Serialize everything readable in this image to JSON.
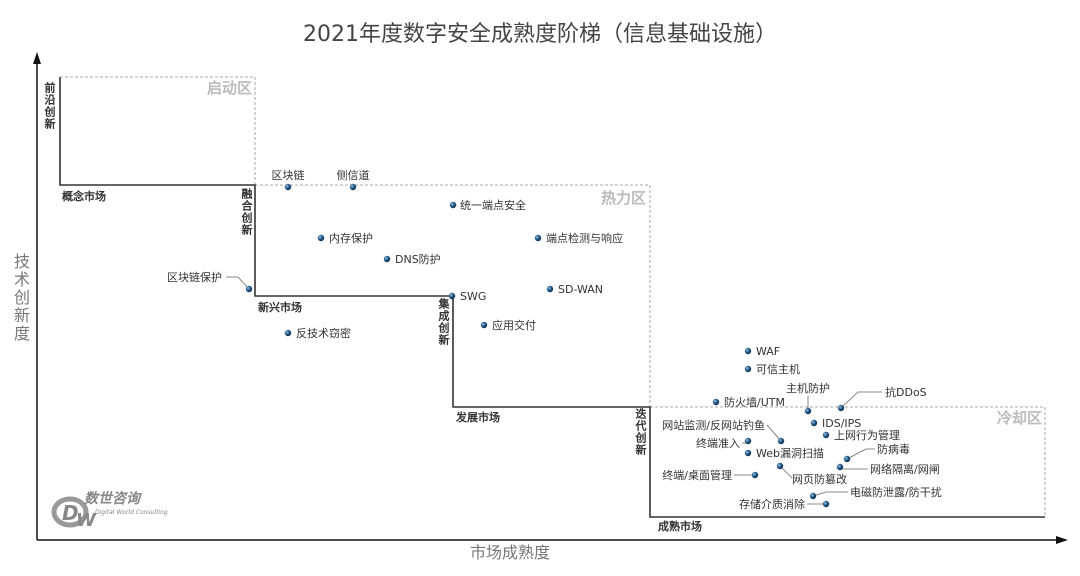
{
  "title": "2021年度数字安全成熟度阶梯（信息基础设施）",
  "y_axis_label": "技术创新度",
  "x_axis_label": "市场成熟度",
  "stages": {
    "frontier_innovation": "前沿创新",
    "concept_market": "概念市场",
    "fusion_innovation": "融合创新",
    "emerging_market": "新兴市场",
    "integration_innovation": "集成创新",
    "developing_market": "发展市场",
    "iteration_innovation": "迭代创新",
    "mature_market": "成熟市场"
  },
  "zones": {
    "startup": "启动区",
    "hot": "热力区",
    "cooling": "冷却区"
  },
  "points": [
    {
      "label": "区块链"
    },
    {
      "label": "侧信道"
    },
    {
      "label": "统一端点安全"
    },
    {
      "label": "内存保护"
    },
    {
      "label": "端点检测与响应"
    },
    {
      "label": "DNS防护"
    },
    {
      "label": "区块链保护"
    },
    {
      "label": "SWG"
    },
    {
      "label": "SD-WAN"
    },
    {
      "label": "应用交付"
    },
    {
      "label": "反技术窃密"
    },
    {
      "label": "WAF"
    },
    {
      "label": "可信主机"
    },
    {
      "label": "防火墙/UTM"
    },
    {
      "label": "主机防护"
    },
    {
      "label": "抗DDoS"
    },
    {
      "label": "IDS/IPS"
    },
    {
      "label": "上网行为管理"
    },
    {
      "label": "网站监测/反网站钓鱼"
    },
    {
      "label": "终端准入"
    },
    {
      "label": "Web漏洞扫描"
    },
    {
      "label": "防病毒"
    },
    {
      "label": "网络隔离/网闸"
    },
    {
      "label": "网页防篡改"
    },
    {
      "label": "终端/桌面管理"
    },
    {
      "label": "电磁防泄露/防干扰"
    },
    {
      "label": "存储介质消除"
    }
  ],
  "logo": {
    "name": "数世咨询",
    "subtitle": "Digital World Consulting",
    "mark": "DW"
  },
  "colors": {
    "dot": "#1f4e79",
    "staircase": "#333333",
    "zone_border": "#aaaaaa",
    "zone_label": "#bbbbbb"
  }
}
